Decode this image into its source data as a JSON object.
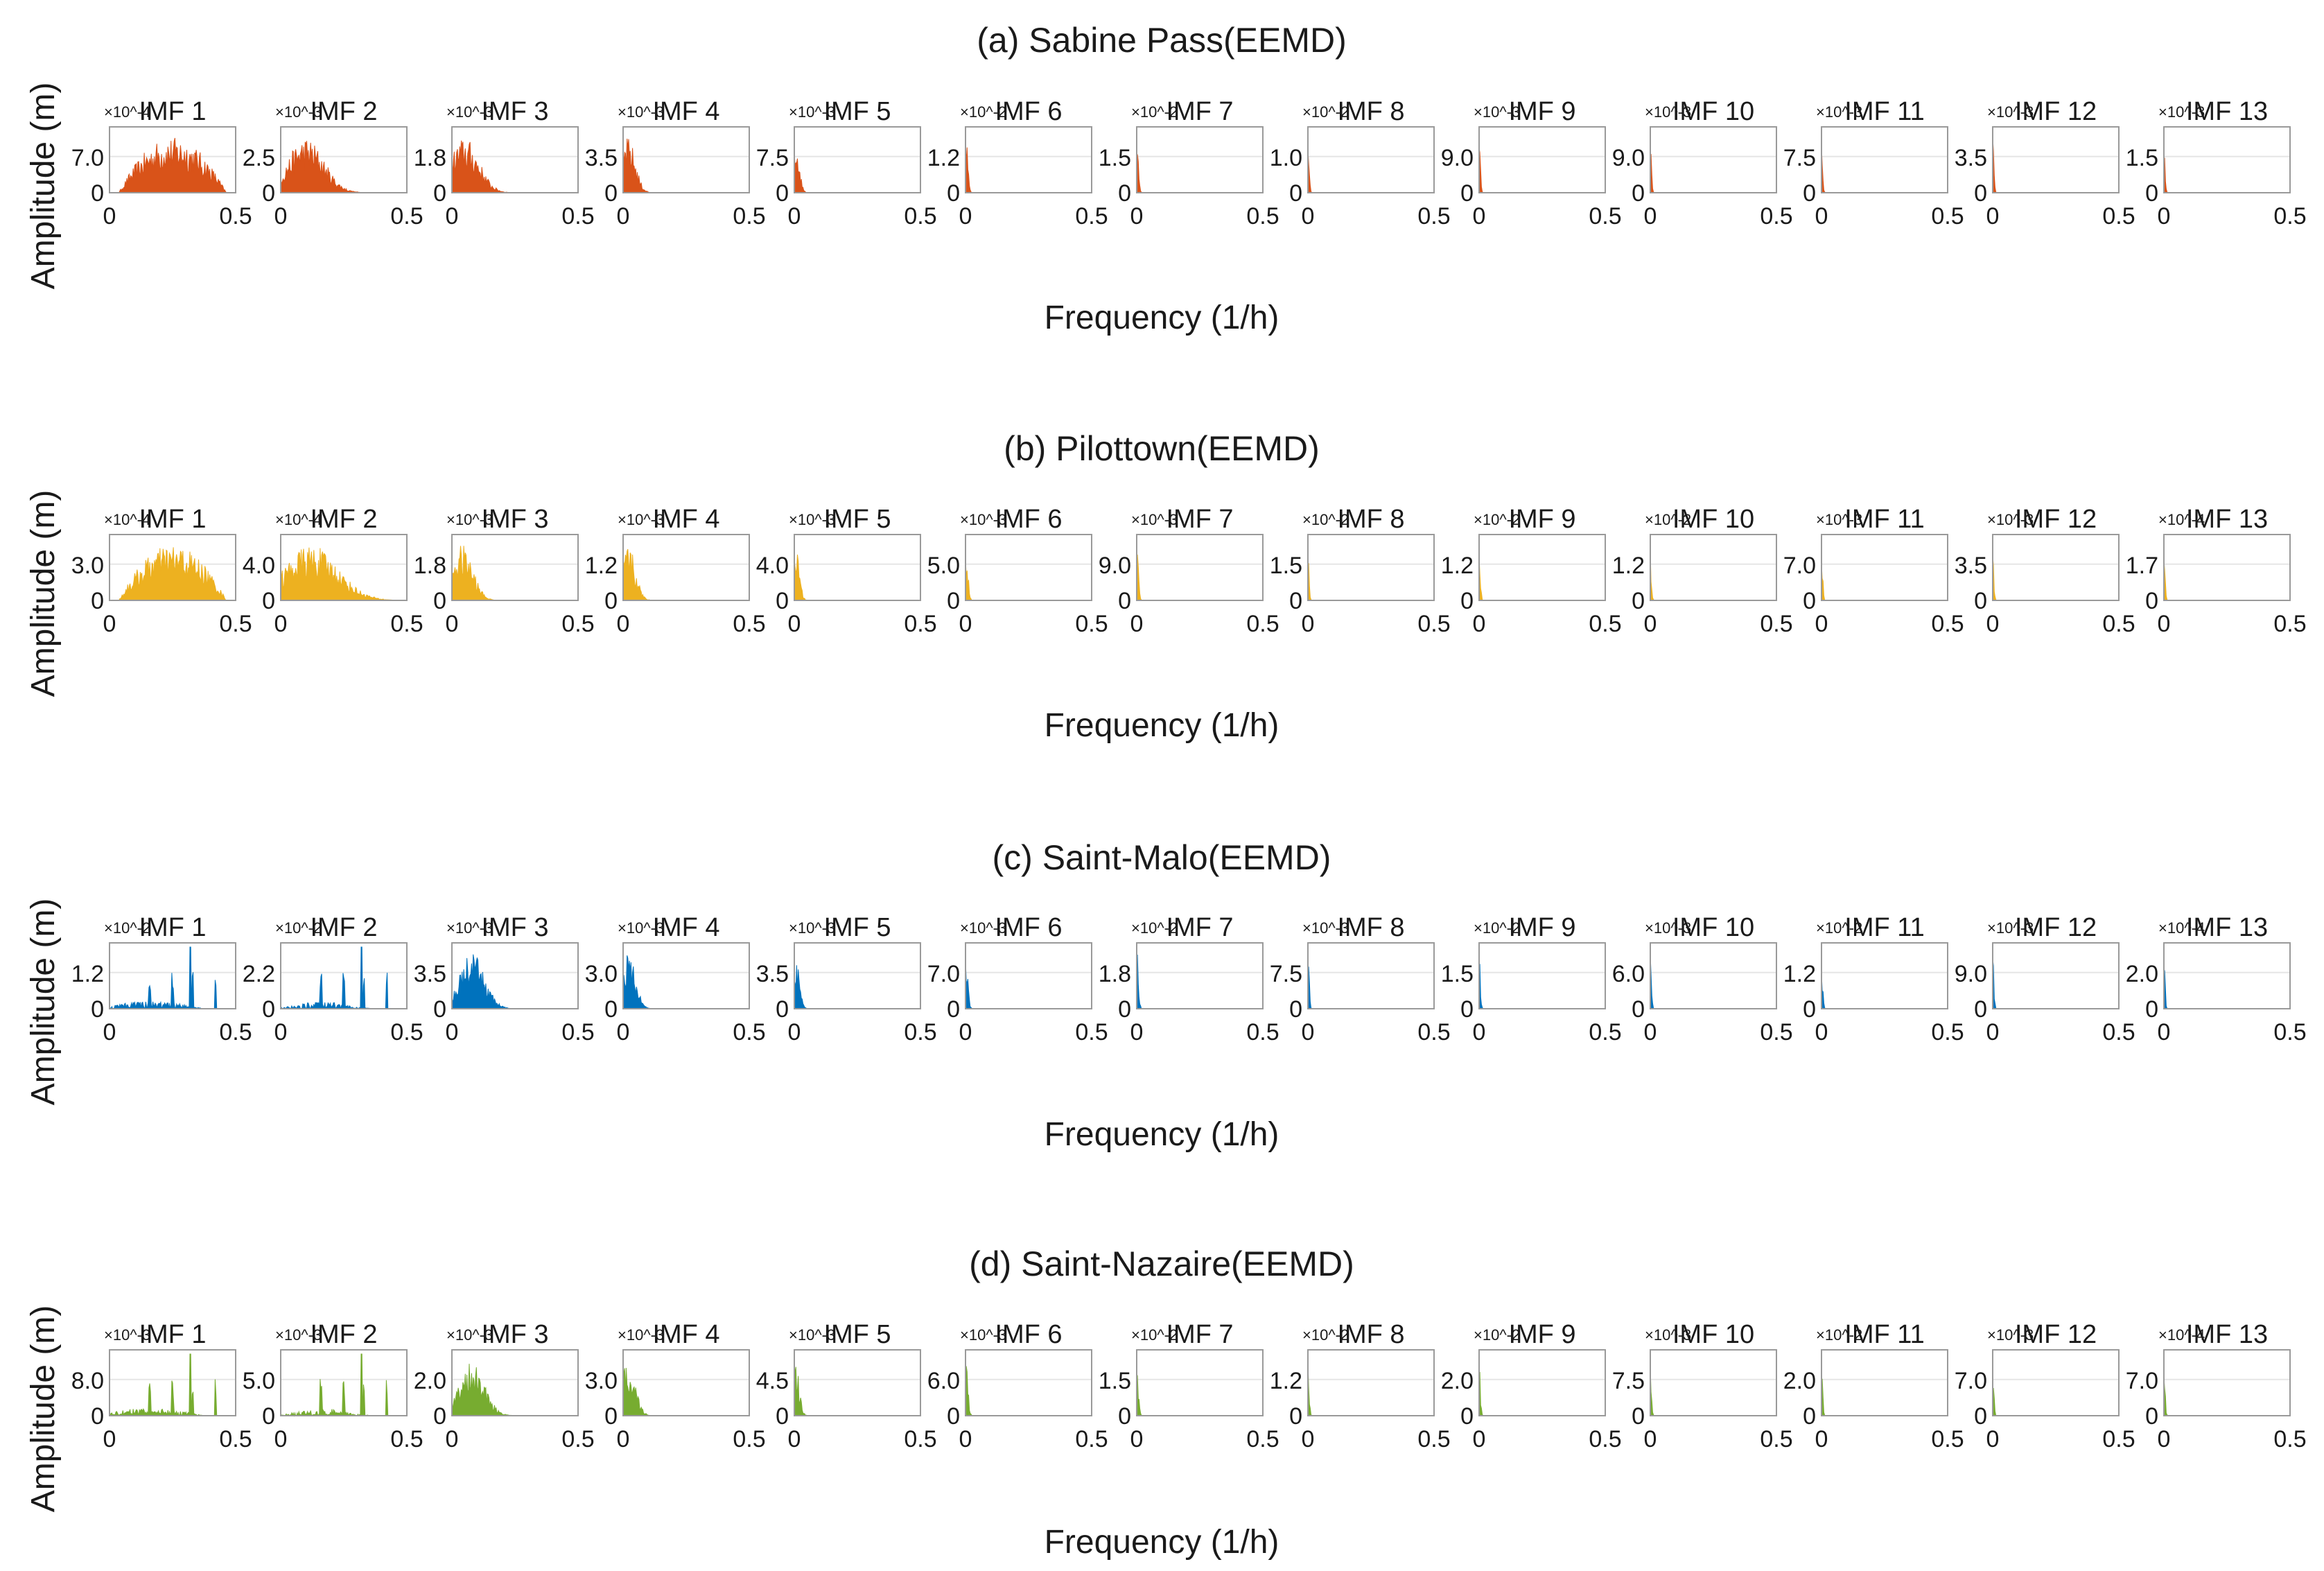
{
  "figure": {
    "shared_ylabel": "Amplitude (m)",
    "shared_xlabel": "Frequency (1/h)",
    "subplot_titles": [
      "IMF 1",
      "IMF 2",
      "IMF 3",
      "IMF 4",
      "IMF 5",
      "IMF 6",
      "IMF 7",
      "IMF 8",
      "IMF 9",
      "IMF 10",
      "IMF 11",
      "IMF 12",
      "IMF 13"
    ],
    "x_ticks": [
      "0",
      "0.5"
    ]
  },
  "chart_data": [
    {
      "type": "area",
      "title": "(a) Sabine Pass(EEMD)",
      "xlabel": "Frequency (1/h)",
      "ylabel": "Amplitude (m)",
      "color": "#D95319",
      "xlim": [
        0,
        0.5
      ],
      "grid": false,
      "panels": [
        {
          "title": "IMF 1",
          "exponent": "×10^-4",
          "ytick": "7.0",
          "peak_freq": 0.25,
          "width": 0.3
        },
        {
          "title": "IMF 2",
          "exponent": "×10^-3",
          "ytick": "2.5",
          "peak_freq": 0.1,
          "width": 0.1
        },
        {
          "title": "IMF 3",
          "exponent": "×10^-3",
          "ytick": "1.8",
          "peak_freq": 0.05,
          "width": 0.08
        },
        {
          "title": "IMF 4",
          "exponent": "×10^-3",
          "ytick": "3.5",
          "peak_freq": 0.02,
          "width": 0.04
        },
        {
          "title": "IMF 5",
          "exponent": "×10^-3",
          "ytick": "7.5",
          "peak_freq": 0.005,
          "width": 0.02
        },
        {
          "title": "IMF 6",
          "exponent": "×10^-2",
          "ytick": "1.2",
          "peak_freq": 0.003,
          "width": 0.01
        },
        {
          "title": "IMF 7",
          "exponent": "×10^-2",
          "ytick": "1.5",
          "peak_freq": 0.002,
          "width": 0.008
        },
        {
          "title": "IMF 8",
          "exponent": "×10^-2",
          "ytick": "1.0",
          "peak_freq": 0.001,
          "width": 0.005
        },
        {
          "title": "IMF 9",
          "exponent": "×10^-3",
          "ytick": "9.0",
          "peak_freq": 0.001,
          "width": 0.004
        },
        {
          "title": "IMF 10",
          "exponent": "×10^-3",
          "ytick": "9.0",
          "peak_freq": 0.0005,
          "width": 0.003
        },
        {
          "title": "IMF 11",
          "exponent": "×10^-3",
          "ytick": "7.5",
          "peak_freq": 0.0005,
          "width": 0.003
        },
        {
          "title": "IMF 12",
          "exponent": "×10^-3",
          "ytick": "3.5",
          "peak_freq": 0.0005,
          "width": 0.003
        },
        {
          "title": "IMF 13",
          "exponent": "×10^-3",
          "ytick": "1.5",
          "peak_freq": 0.0005,
          "width": 0.003
        }
      ]
    },
    {
      "type": "area",
      "title": "(b) Pilottown(EEMD)",
      "xlabel": "Frequency (1/h)",
      "ylabel": "Amplitude (m)",
      "color": "#EDB120",
      "xlim": [
        0,
        0.5
      ],
      "grid": false,
      "panels": [
        {
          "title": "IMF 1",
          "exponent": "×10^-4",
          "ytick": "3.0",
          "peak_freq": 0.25,
          "width": 0.3
        },
        {
          "title": "IMF 2",
          "exponent": "×10^-4",
          "ytick": "4.0",
          "peak_freq": 0.12,
          "width": 0.15
        },
        {
          "title": "IMF 3",
          "exponent": "×10^-3",
          "ytick": "1.8",
          "peak_freq": 0.04,
          "width": 0.06
        },
        {
          "title": "IMF 4",
          "exponent": "×10^-3",
          "ytick": "1.2",
          "peak_freq": 0.02,
          "width": 0.04
        },
        {
          "title": "IMF 5",
          "exponent": "×10^-3",
          "ytick": "4.0",
          "peak_freq": 0.005,
          "width": 0.02
        },
        {
          "title": "IMF 6",
          "exponent": "×10^-3",
          "ytick": "5.0",
          "peak_freq": 0.003,
          "width": 0.01
        },
        {
          "title": "IMF 7",
          "exponent": "×10^-3",
          "ytick": "9.0",
          "peak_freq": 0.002,
          "width": 0.008
        },
        {
          "title": "IMF 8",
          "exponent": "×10^-2",
          "ytick": "1.5",
          "peak_freq": 0.001,
          "width": 0.005
        },
        {
          "title": "IMF 9",
          "exponent": "×10^-2",
          "ytick": "1.2",
          "peak_freq": 0.001,
          "width": 0.004
        },
        {
          "title": "IMF 10",
          "exponent": "×10^-2",
          "ytick": "1.2",
          "peak_freq": 0.0005,
          "width": 0.003
        },
        {
          "title": "IMF 11",
          "exponent": "×10^-3",
          "ytick": "7.0",
          "peak_freq": 0.0005,
          "width": 0.003
        },
        {
          "title": "IMF 12",
          "exponent": "×10^-3",
          "ytick": "3.5",
          "peak_freq": 0.0005,
          "width": 0.003
        },
        {
          "title": "IMF 13",
          "exponent": "×10^-4",
          "ytick": "1.7",
          "peak_freq": 0.0005,
          "width": 0.003
        }
      ]
    },
    {
      "type": "area",
      "title": "(c) Saint-Malo(EEMD)",
      "xlabel": "Frequency (1/h)",
      "ylabel": "Amplitude (m)",
      "color": "#0072BD",
      "xlim": [
        0,
        0.5
      ],
      "grid": false,
      "panels": [
        {
          "title": "IMF 1",
          "exponent": "×10^-2",
          "ytick": "1.2",
          "peak_freq": 0.16,
          "width": 0.3,
          "spiky": true
        },
        {
          "title": "IMF 2",
          "exponent": "×10^-2",
          "ytick": "2.2",
          "peak_freq": 0.16,
          "width": 0.12,
          "spiky": true
        },
        {
          "title": "IMF 3",
          "exponent": "×10^-3",
          "ytick": "3.5",
          "peak_freq": 0.08,
          "width": 0.07
        },
        {
          "title": "IMF 4",
          "exponent": "×10^-3",
          "ytick": "3.0",
          "peak_freq": 0.02,
          "width": 0.04
        },
        {
          "title": "IMF 5",
          "exponent": "×10^-3",
          "ytick": "3.5",
          "peak_freq": 0.005,
          "width": 0.02
        },
        {
          "title": "IMF 6",
          "exponent": "×10^-3",
          "ytick": "7.0",
          "peak_freq": 0.003,
          "width": 0.01
        },
        {
          "title": "IMF 7",
          "exponent": "×10^-2",
          "ytick": "1.8",
          "peak_freq": 0.002,
          "width": 0.008
        },
        {
          "title": "IMF 8",
          "exponent": "×10^-3",
          "ytick": "7.5",
          "peak_freq": 0.001,
          "width": 0.005
        },
        {
          "title": "IMF 9",
          "exponent": "×10^-2",
          "ytick": "1.5",
          "peak_freq": 0.001,
          "width": 0.004
        },
        {
          "title": "IMF 10",
          "exponent": "×10^-3",
          "ytick": "6.0",
          "peak_freq": 0.0005,
          "width": 0.003
        },
        {
          "title": "IMF 11",
          "exponent": "×10^-2",
          "ytick": "1.2",
          "peak_freq": 0.0005,
          "width": 0.003
        },
        {
          "title": "IMF 12",
          "exponent": "×10^-3",
          "ytick": "9.0",
          "peak_freq": 0.0005,
          "width": 0.003
        },
        {
          "title": "IMF 13",
          "exponent": "×10^-4",
          "ytick": "2.0",
          "peak_freq": 0.0005,
          "width": 0.003
        }
      ]
    },
    {
      "type": "area",
      "title": "(d) Saint-Nazaire(EEMD)",
      "xlabel": "Frequency (1/h)",
      "ylabel": "Amplitude (m)",
      "color": "#77AC30",
      "xlim": [
        0,
        0.5
      ],
      "grid": false,
      "panels": [
        {
          "title": "IMF 1",
          "exponent": "×10^-3",
          "ytick": "8.0",
          "peak_freq": 0.16,
          "width": 0.3,
          "spiky": true
        },
        {
          "title": "IMF 2",
          "exponent": "×10^-3",
          "ytick": "5.0",
          "peak_freq": 0.16,
          "width": 0.12,
          "spiky": true
        },
        {
          "title": "IMF 3",
          "exponent": "×10^-3",
          "ytick": "2.0",
          "peak_freq": 0.08,
          "width": 0.07
        },
        {
          "title": "IMF 4",
          "exponent": "×10^-3",
          "ytick": "3.0",
          "peak_freq": 0.02,
          "width": 0.04
        },
        {
          "title": "IMF 5",
          "exponent": "×10^-3",
          "ytick": "4.5",
          "peak_freq": 0.005,
          "width": 0.02
        },
        {
          "title": "IMF 6",
          "exponent": "×10^-3",
          "ytick": "6.0",
          "peak_freq": 0.003,
          "width": 0.01
        },
        {
          "title": "IMF 7",
          "exponent": "×10^-2",
          "ytick": "1.5",
          "peak_freq": 0.002,
          "width": 0.008
        },
        {
          "title": "IMF 8",
          "exponent": "×10^-2",
          "ytick": "1.2",
          "peak_freq": 0.001,
          "width": 0.005
        },
        {
          "title": "IMF 9",
          "exponent": "×10^-2",
          "ytick": "2.0",
          "peak_freq": 0.001,
          "width": 0.004
        },
        {
          "title": "IMF 10",
          "exponent": "×10^-3",
          "ytick": "7.5",
          "peak_freq": 0.0005,
          "width": 0.003
        },
        {
          "title": "IMF 11",
          "exponent": "×10^-2",
          "ytick": "2.0",
          "peak_freq": 0.0005,
          "width": 0.003
        },
        {
          "title": "IMF 12",
          "exponent": "×10^-3",
          "ytick": "7.0",
          "peak_freq": 0.0005,
          "width": 0.003
        },
        {
          "title": "IMF 13",
          "exponent": "×10^-4",
          "ytick": "7.0",
          "peak_freq": 0.0005,
          "width": 0.003
        }
      ]
    }
  ]
}
